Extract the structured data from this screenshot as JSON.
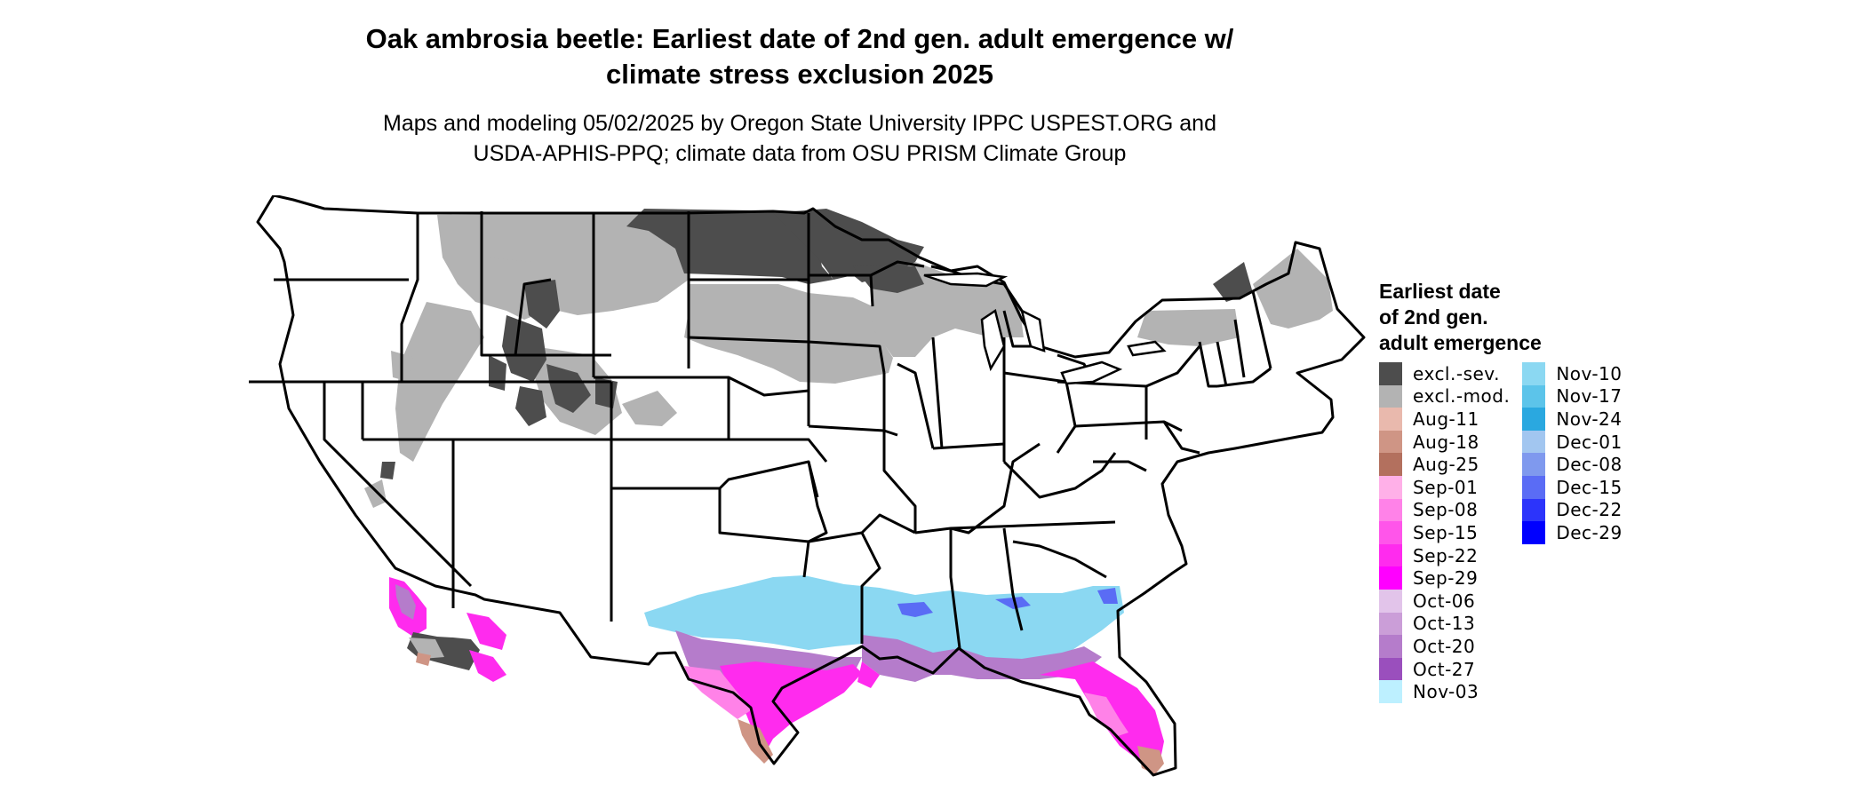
{
  "title_line1": "Oak ambrosia beetle: Earliest date of 2nd gen. adult emergence w/",
  "title_line2": "climate stress exclusion 2025",
  "subtitle_line1": "Maps and modeling 05/02/2025 by Oregon State University IPPC USPEST.ORG and",
  "subtitle_line2": "USDA-APHIS-PPQ; climate data from OSU PRISM Climate Group",
  "legend": {
    "title_line1": "Earliest date",
    "title_line2": "of 2nd gen.",
    "title_line3": "adult emergence",
    "columns": [
      [
        {
          "label": "excl.-sev.",
          "color": "#4d4d4d"
        },
        {
          "label": "excl.-mod.",
          "color": "#b3b3b3"
        },
        {
          "label": "Aug-11",
          "color": "#e9b9ad"
        },
        {
          "label": "Aug-18",
          "color": "#cf9585"
        },
        {
          "label": "Aug-25",
          "color": "#b3705e"
        },
        {
          "label": "Sep-01",
          "color": "#ffb0e8"
        },
        {
          "label": "Sep-08",
          "color": "#ff82e8"
        },
        {
          "label": "Sep-15",
          "color": "#ff55ea"
        },
        {
          "label": "Sep-22",
          "color": "#ff2bee"
        },
        {
          "label": "Sep-29",
          "color": "#ff00ff"
        },
        {
          "label": "Oct-06",
          "color": "#e2c4ea"
        },
        {
          "label": "Oct-13",
          "color": "#cb9ed8"
        },
        {
          "label": "Oct-20",
          "color": "#b57ccb"
        },
        {
          "label": "Oct-27",
          "color": "#9a4fbd"
        },
        {
          "label": "Nov-03",
          "color": "#bdf0ff"
        }
      ],
      [
        {
          "label": "Nov-10",
          "color": "#8bd8f2"
        },
        {
          "label": "Nov-17",
          "color": "#5cc4ea"
        },
        {
          "label": "Nov-24",
          "color": "#2aa8e0"
        },
        {
          "label": "Dec-01",
          "color": "#a2c6f0"
        },
        {
          "label": "Dec-08",
          "color": "#7f99ee"
        },
        {
          "label": "Dec-15",
          "color": "#5a6cf5"
        },
        {
          "label": "Dec-22",
          "color": "#2c34fb"
        },
        {
          "label": "Dec-29",
          "color": "#0000ff"
        }
      ]
    ]
  },
  "map_colors": {
    "state_fill": "#ffffff",
    "state_border": "#000000",
    "excl_sev": "#4d4d4d",
    "excl_mod": "#b3b3b3",
    "aug": "#cf9585",
    "sep": "#ff2bee",
    "sep_light": "#ff82e8",
    "oct": "#b57ccb",
    "nov": "#8bd8f2",
    "dec": "#5a6cf5"
  }
}
